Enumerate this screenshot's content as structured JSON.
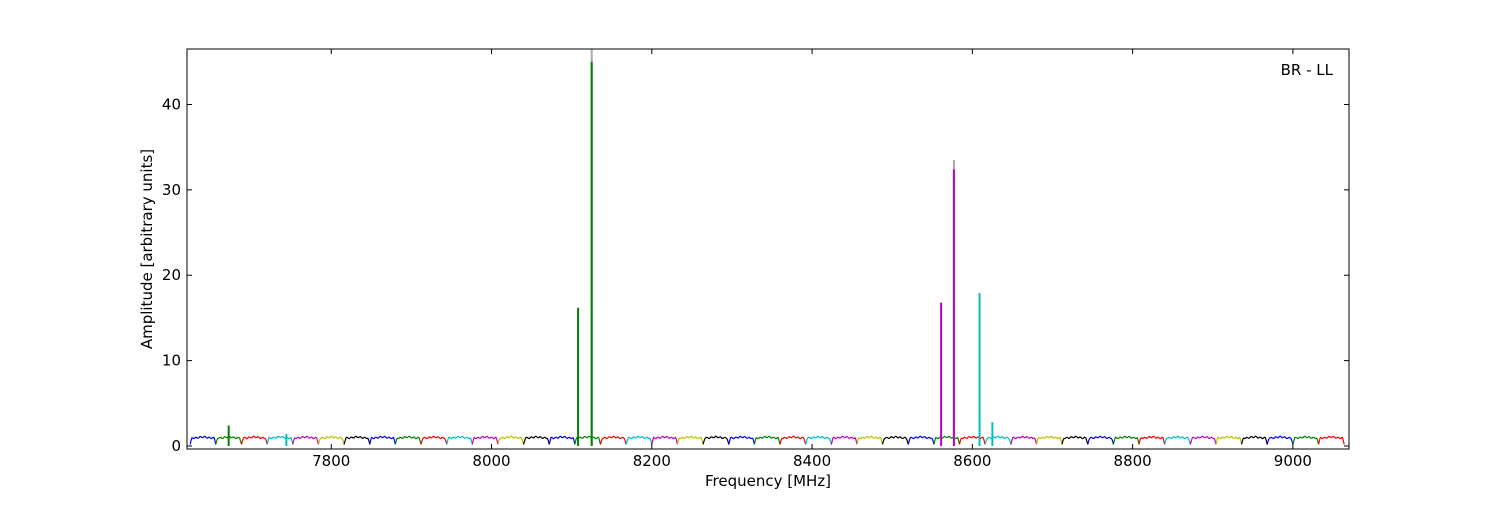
{
  "chart_data": {
    "type": "line",
    "annotation": "BR - LL",
    "xlabel": "Frequency [MHz]",
    "ylabel": "Amplitude [arbitrary units]",
    "xlim": [
      7620,
      9070
    ],
    "ylim": [
      0,
      46.5
    ],
    "xticks": [
      7800,
      8000,
      8200,
      8400,
      8600,
      8800,
      9000
    ],
    "yticks": [
      0,
      10,
      20,
      30,
      40
    ],
    "grid": false,
    "legend": "none",
    "channel_width_mhz": 32,
    "channel_baseline": 1.0,
    "channel_colors": [
      "#0000ff",
      "#008000",
      "#ff0000",
      "#00bfbf",
      "#bf00bf",
      "#bfbf00",
      "#000000"
    ],
    "channel_starts": [
      7624,
      7656,
      7688,
      7720,
      7752,
      7784,
      7816,
      7848,
      7880,
      7912,
      7944,
      7976,
      8008,
      8040,
      8072,
      8104,
      8136,
      8168,
      8200,
      8232,
      8264,
      8296,
      8328,
      8360,
      8392,
      8424,
      8456,
      8488,
      8520,
      8552,
      8584,
      8616,
      8648,
      8680,
      8712,
      8744,
      8776,
      8808,
      8840,
      8872,
      8904,
      8936,
      8968,
      9000,
      9032
    ],
    "spikes": [
      {
        "x": 7672,
        "y": 2.4,
        "color": "#008000"
      },
      {
        "x": 7744,
        "y": 1.4,
        "color": "#00bfbf"
      },
      {
        "x": 8108,
        "y": 16.2,
        "color": "#008000"
      },
      {
        "x": 8125,
        "y": 46.5,
        "color": "#aaaaaa"
      },
      {
        "x": 8125,
        "y": 45.0,
        "color": "#008000"
      },
      {
        "x": 8561,
        "y": 16.8,
        "color": "#bf00bf"
      },
      {
        "x": 8577,
        "y": 33.5,
        "color": "#aaaaaa"
      },
      {
        "x": 8577,
        "y": 32.4,
        "color": "#bf00bf"
      },
      {
        "x": 8609,
        "y": 17.9,
        "color": "#00bfbf"
      },
      {
        "x": 8625,
        "y": 2.8,
        "color": "#00bfbf"
      }
    ]
  }
}
